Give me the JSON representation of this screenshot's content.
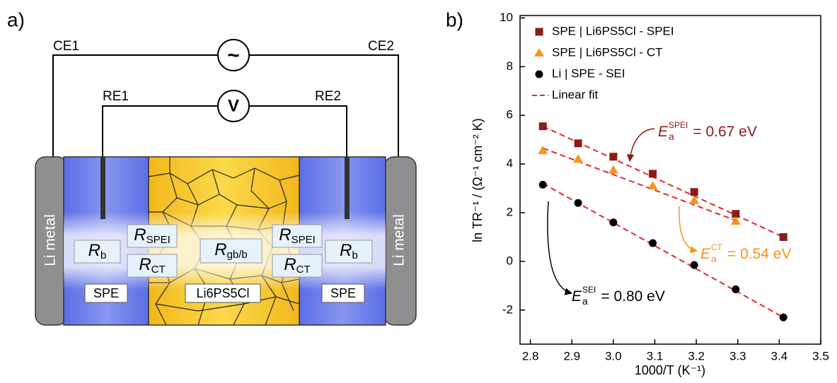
{
  "diagram": {
    "panel_label": "a)",
    "counter_electrodes": [
      "CE1",
      "CE2"
    ],
    "reference_electrodes": [
      "RE1",
      "RE2"
    ],
    "ac_source": "~",
    "voltmeter": "V",
    "electrodes": [
      "Li metal",
      "Li metal"
    ],
    "layers": [
      "SPE",
      "Li6PS5Cl",
      "SPE"
    ],
    "resistances": [
      {
        "main": "R",
        "sub": "b"
      },
      {
        "main": "R",
        "sub": "SPEI"
      },
      {
        "main": "R",
        "sub": "CT"
      },
      {
        "main": "R",
        "sub": "gb/b"
      },
      {
        "main": "R",
        "sub": "SPEI"
      },
      {
        "main": "R",
        "sub": "CT"
      },
      {
        "main": "R",
        "sub": "b"
      }
    ]
  },
  "chart_data": {
    "type": "scatter",
    "panel_label": "b)",
    "x_label": "1000/T (K⁻¹)",
    "y_label": "ln TR⁻¹ / (Ω⁻¹ cm⁻² K)",
    "xlim": [
      2.775,
      3.5
    ],
    "ylim": [
      -3.4,
      10.1
    ],
    "xticks": [
      2.8,
      2.9,
      {
        "value": 3,
        "label": "3.0"
      },
      3.1,
      3.2,
      3.3,
      3.4,
      3.5
    ],
    "yticks": [
      -2,
      0,
      2,
      4,
      6,
      8,
      10
    ],
    "series": [
      {
        "name": "SPE | Li6PS5Cl - SPEI",
        "color": "#8b1c1c",
        "marker": "square",
        "x": [
          2.83,
          2.915,
          3.0,
          3.095,
          3.195,
          3.295,
          3.41
        ],
        "values": [
          5.55,
          4.85,
          4.3,
          3.6,
          2.85,
          1.95,
          1.0
        ]
      },
      {
        "name": "SPE | Li6PS5Cl - CT",
        "color": "#f7941d",
        "marker": "triangle",
        "x": [
          2.83,
          2.915,
          3.0,
          3.095,
          3.195,
          3.295
        ],
        "values": [
          4.55,
          4.2,
          3.75,
          3.1,
          2.5,
          1.65
        ]
      },
      {
        "name": "Li | SPE - SEI",
        "color": "#000000",
        "marker": "circle",
        "x": [
          2.83,
          2.915,
          3.0,
          3.095,
          3.195,
          3.295,
          3.41
        ],
        "values": [
          3.15,
          2.4,
          1.6,
          0.75,
          -0.15,
          -1.15,
          -2.3
        ]
      }
    ],
    "fit": {
      "name": "Linear fit",
      "color": "#e8262b",
      "lines": [
        {
          "x": [
            2.83,
            3.41
          ],
          "values": [
            5.55,
            1.0
          ]
        },
        {
          "x": [
            2.83,
            3.3
          ],
          "values": [
            4.65,
            1.65
          ]
        },
        {
          "x": [
            2.83,
            3.41
          ],
          "values": [
            3.2,
            -2.3
          ]
        }
      ]
    },
    "annotations": [
      {
        "symbol": "E",
        "sub": "a",
        "sup": "SPEI",
        "text": "= 0.67 eV",
        "color": "#8b1c1c"
      },
      {
        "symbol": "E",
        "sub": "a",
        "sup": "CT",
        "text": "= 0.54 eV",
        "color": "#f7941d"
      },
      {
        "symbol": "E",
        "sub": "a",
        "sup": "SEI",
        "text": "= 0.80 eV",
        "color": "#000000"
      }
    ]
  }
}
